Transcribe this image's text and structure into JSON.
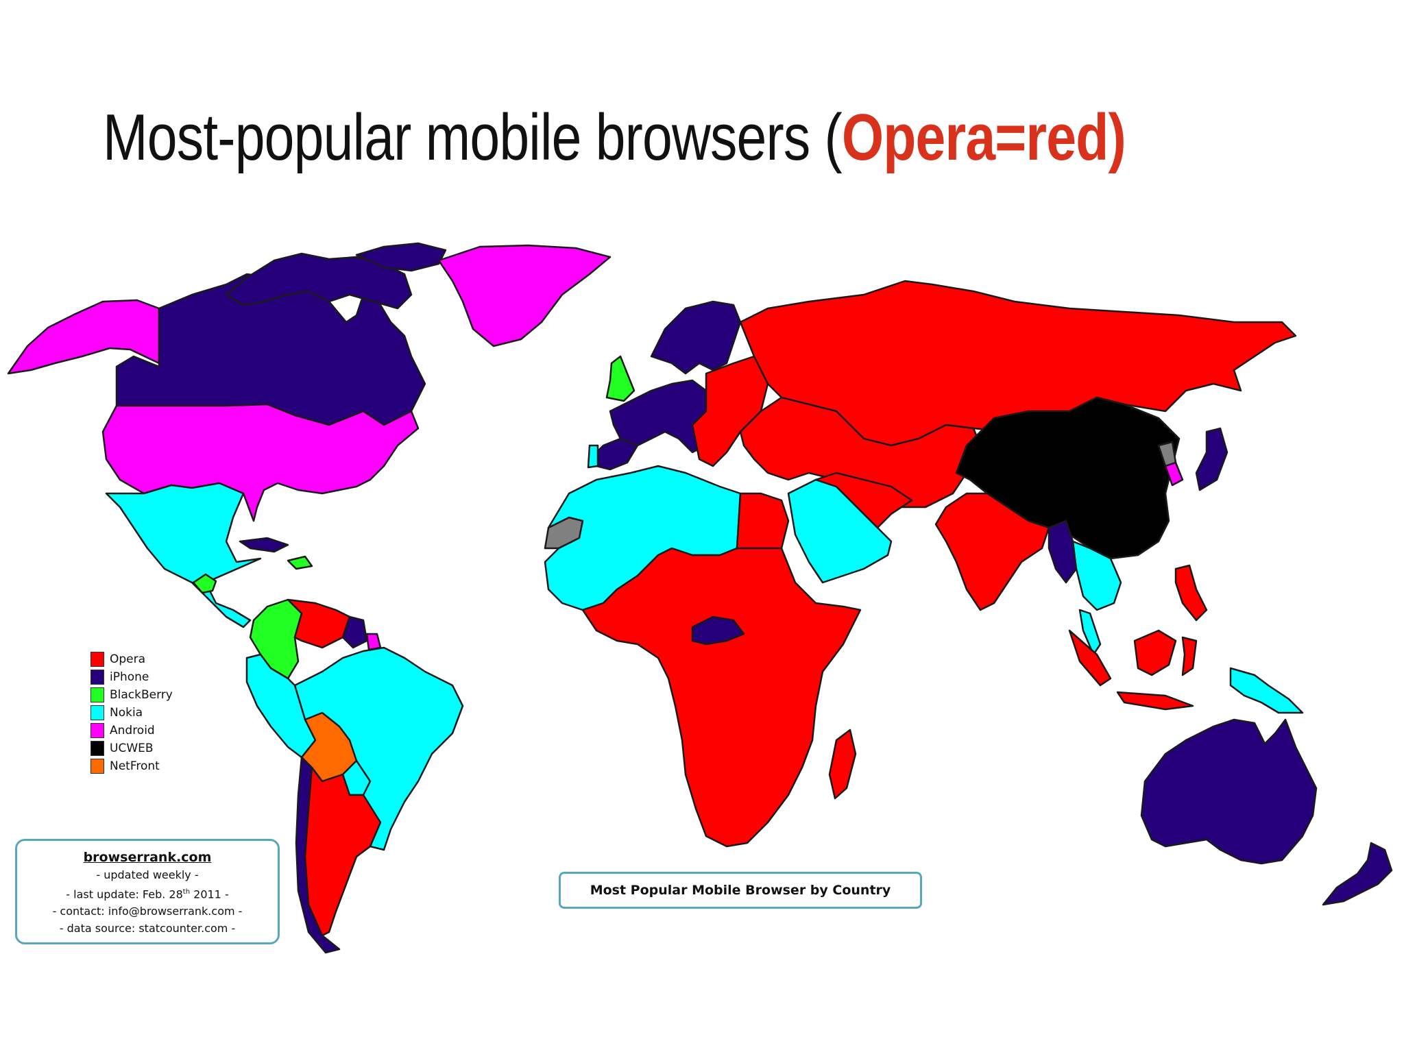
{
  "title": {
    "main": "Most-popular mobile browsers (",
    "accent": "Opera=red)"
  },
  "colors": {
    "Opera": "#ff0000",
    "iPhone": "#26007a",
    "BlackBerry": "#22ff22",
    "Nokia": "#00ffff",
    "Android": "#ff00ff",
    "UCWEB": "#000000",
    "NetFront": "#ff6a00",
    "NoData": "#808080",
    "title_accent": "#d8321c",
    "box_border": "#5aa7bd"
  },
  "legend": [
    {
      "label": "Opera",
      "color": "#ff0000"
    },
    {
      "label": "iPhone",
      "color": "#26007a"
    },
    {
      "label": "BlackBerry",
      "color": "#22ff22"
    },
    {
      "label": "Nokia",
      "color": "#00ffff"
    },
    {
      "label": "Android",
      "color": "#ff00ff"
    },
    {
      "label": "UCWEB",
      "color": "#000000"
    },
    {
      "label": "NetFront",
      "color": "#ff6a00"
    }
  ],
  "info_box": {
    "site": "browserrank.com",
    "line1": "- updated weekly -",
    "line2_prefix": "- last update: Feb. 28",
    "line2_sup": "th",
    "line2_suffix": " 2011 -",
    "line3": "- contact: info@browserrank.com -",
    "line4": "- data source: statcounter.com -"
  },
  "map_caption": "Most Popular Mobile Browser by Country",
  "regions": [
    {
      "name": "Canada",
      "browser": "iPhone"
    },
    {
      "name": "Alaska",
      "browser": "Android"
    },
    {
      "name": "United States",
      "browser": "Android"
    },
    {
      "name": "Greenland",
      "browser": "Android"
    },
    {
      "name": "Mexico and Central America",
      "browser": "Nokia"
    },
    {
      "name": "Cuba",
      "browser": "iPhone"
    },
    {
      "name": "Dominican Republic",
      "browser": "BlackBerry"
    },
    {
      "name": "Guatemala",
      "browser": "BlackBerry"
    },
    {
      "name": "Colombia",
      "browser": "BlackBerry"
    },
    {
      "name": "Venezuela",
      "browser": "Opera"
    },
    {
      "name": "Guyana",
      "browser": "iPhone"
    },
    {
      "name": "Suriname",
      "browser": "Android"
    },
    {
      "name": "Brazil",
      "browser": "Nokia"
    },
    {
      "name": "Peru and Ecuador",
      "browser": "Nokia"
    },
    {
      "name": "Bolivia",
      "browser": "NetFront"
    },
    {
      "name": "Argentina",
      "browser": "Opera"
    },
    {
      "name": "Chile",
      "browser": "iPhone"
    },
    {
      "name": "Paraguay",
      "browser": "Nokia"
    },
    {
      "name": "United Kingdom",
      "browser": "BlackBerry"
    },
    {
      "name": "Western Europe",
      "browser": "iPhone"
    },
    {
      "name": "Scandinavia",
      "browser": "iPhone"
    },
    {
      "name": "Portugal",
      "browser": "Nokia"
    },
    {
      "name": "Eastern Europe",
      "browser": "Opera"
    },
    {
      "name": "Russia",
      "browser": "Opera"
    },
    {
      "name": "Central Asia",
      "browser": "Opera"
    },
    {
      "name": "India",
      "browser": "Opera"
    },
    {
      "name": "China",
      "browser": "UCWEB"
    },
    {
      "name": "South Korea",
      "browser": "Android"
    },
    {
      "name": "North Korea",
      "browser": "NoData"
    },
    {
      "name": "Japan",
      "browser": "iPhone"
    },
    {
      "name": "Myanmar",
      "browser": "iPhone"
    },
    {
      "name": "Thailand and Indochina",
      "browser": "Nokia"
    },
    {
      "name": "Indonesia",
      "browser": "Opera"
    },
    {
      "name": "Philippines",
      "browser": "Opera"
    },
    {
      "name": "Papua New Guinea",
      "browser": "Nokia"
    },
    {
      "name": "Australia",
      "browser": "iPhone"
    },
    {
      "name": "New Zealand",
      "browser": "iPhone"
    },
    {
      "name": "North Africa",
      "browser": "Nokia"
    },
    {
      "name": "Egypt",
      "browser": "Opera"
    },
    {
      "name": "Saudi Arabia",
      "browser": "Nokia"
    },
    {
      "name": "Western Sahara",
      "browser": "NoData"
    },
    {
      "name": "Sub-Saharan Africa",
      "browser": "Opera"
    },
    {
      "name": "Central African Republic",
      "browser": "iPhone"
    },
    {
      "name": "Madagascar",
      "browser": "Opera"
    }
  ]
}
